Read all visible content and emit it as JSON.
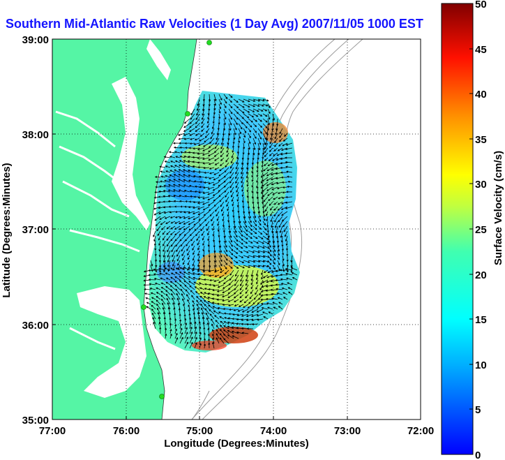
{
  "title": "Southern Mid-Atlantic Raw Velocities (1 Day Avg) 2007/11/05 1000 EST",
  "map": {
    "xlabel": "Longitude (Degrees:Minutes)",
    "ylabel": "Latitude (Degrees:Minutes)",
    "lon_range": [
      -77,
      -72
    ],
    "lat_range": [
      35,
      39
    ],
    "x_ticks": [
      "77:00",
      "76:00",
      "75:00",
      "74:00",
      "73:00",
      "72:00"
    ],
    "y_ticks": [
      "39:00",
      "38:00",
      "37:00",
      "36:00",
      "35:00"
    ],
    "grid": "dotted",
    "land_color": "#55f5a5",
    "site_marker_color": "#22dd22"
  },
  "colorbar": {
    "label": "Surface Velocity (cm/s)",
    "ticks": [
      "50",
      "45",
      "40",
      "35",
      "30",
      "25",
      "20",
      "15",
      "10",
      "5",
      "0"
    ],
    "range": [
      0,
      50
    ],
    "colormap": "jet"
  }
}
